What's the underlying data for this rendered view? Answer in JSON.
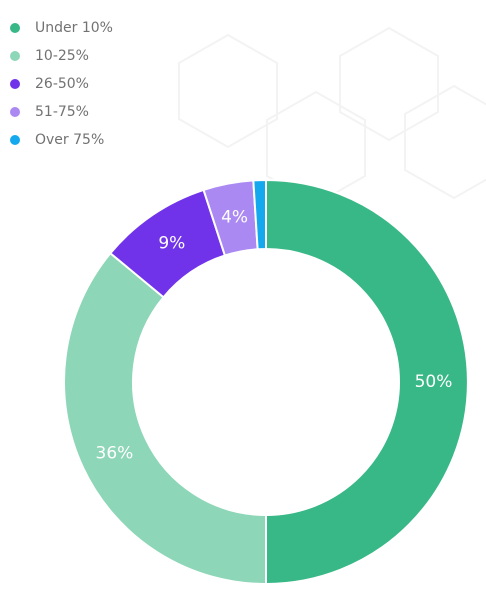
{
  "colors": {
    "under_10": "#38b887",
    "range_10_25": "#8dd6b7",
    "range_26_50": "#7133ea",
    "range_51_75": "#ab89f2",
    "over_75": "#14a9ef",
    "small_label": "#14a9ef"
  },
  "chart_data": {
    "type": "pie",
    "categories": [
      "Under 10%",
      "10-25%",
      "26-50%",
      "51-75%",
      "Over 75%"
    ],
    "values": [
      50,
      36,
      9,
      4,
      1
    ],
    "data_labels": [
      "50%",
      "36%",
      "9%",
      "4%",
      "1%"
    ],
    "legend_position": "top-left",
    "donut": true
  }
}
